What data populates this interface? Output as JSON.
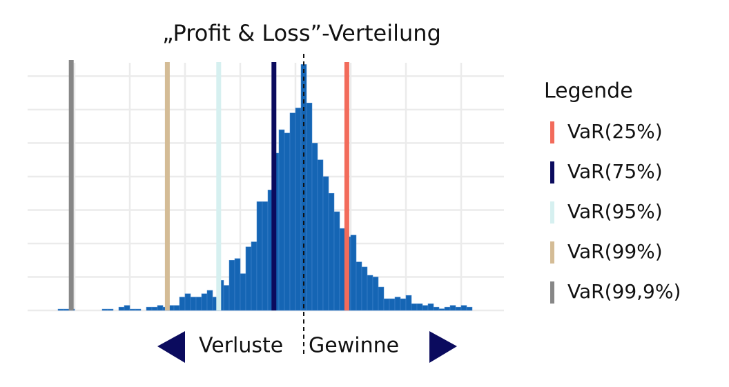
{
  "chart_data": {
    "type": "histogram",
    "title": "„Profit & Loss”-Verteilung",
    "bins": [
      0.7,
      0.8,
      0.9,
      1.0,
      1.1,
      1.2,
      1.3,
      1.4,
      1.5,
      1.6,
      1.7,
      1.8,
      1.9,
      2.0,
      2.1,
      2.2,
      2.3,
      2.4,
      2.5,
      2.6,
      2.7,
      2.8,
      2.9,
      3.0,
      3.1,
      3.2,
      3.3,
      3.4,
      3.5,
      3.6,
      3.7,
      3.8,
      3.9,
      4.0,
      4.1,
      4.2,
      4.3,
      4.4,
      4.5,
      4.6,
      4.7,
      4.8,
      4.9,
      5.0,
      5.1,
      5.2,
      5.3,
      5.4,
      5.5,
      5.6,
      5.7,
      5.8,
      5.9,
      6.0,
      6.1,
      6.2,
      6.3,
      6.4,
      6.5,
      6.6,
      6.7,
      6.8,
      6.9,
      7.0,
      7.1,
      7.2,
      7.3,
      7.4,
      7.5,
      7.6,
      7.7,
      7.8,
      7.9,
      8.0,
      8.1,
      8.2
    ],
    "values": [
      0.04,
      0.04,
      0.04,
      0,
      0,
      0,
      0,
      0,
      0.04,
      0.04,
      0,
      0.1,
      0.15,
      0.04,
      0.04,
      0,
      0.1,
      0.1,
      0.15,
      0.1,
      0.15,
      0.15,
      0.4,
      0.5,
      0.4,
      0.4,
      0.5,
      0.6,
      0.4,
      0.9,
      0.75,
      1.5,
      1.55,
      1.1,
      1.9,
      2.05,
      3.25,
      3.25,
      3.6,
      4.7,
      5.4,
      5.3,
      5.9,
      6.05,
      7.35,
      6.2,
      5.0,
      4.5,
      4.0,
      3.5,
      2.95,
      2.45,
      2.2,
      2.25,
      1.45,
      1.3,
      1.05,
      1.0,
      0.7,
      0.35,
      0.35,
      0.4,
      0.35,
      0.45,
      0.2,
      0.2,
      0.15,
      0.2,
      0.1,
      0.05,
      0.1,
      0.15,
      0.1,
      0.15,
      0.1
    ],
    "color": "#1565b4",
    "xlim": [
      0,
      9
    ],
    "ylim": [
      0,
      7.4
    ],
    "xticks": [
      1,
      2,
      3,
      4,
      5,
      6,
      7,
      8
    ],
    "yticks": [
      0,
      1,
      2,
      3,
      4,
      5,
      6,
      7
    ],
    "grid": true,
    "divider_x": 5.15,
    "lines": [
      {
        "name": "VaR(25%)",
        "color": "#f26b5b",
        "x": 5.93
      },
      {
        "name": "VaR(75%)",
        "color": "#0b0b5e",
        "x": 4.61
      },
      {
        "name": "VaR(95%)",
        "color": "#d6f0f0",
        "x": 3.61
      },
      {
        "name": "VaR(99%)",
        "color": "#d4bc96",
        "x": 2.68
      },
      {
        "name": "VaR(99,9%)",
        "color": "#878787",
        "x": 0.94
      }
    ],
    "legend_title": "Legende",
    "legend": "right",
    "arrow_labels": [
      "Verluste",
      "Gewinne"
    ]
  }
}
